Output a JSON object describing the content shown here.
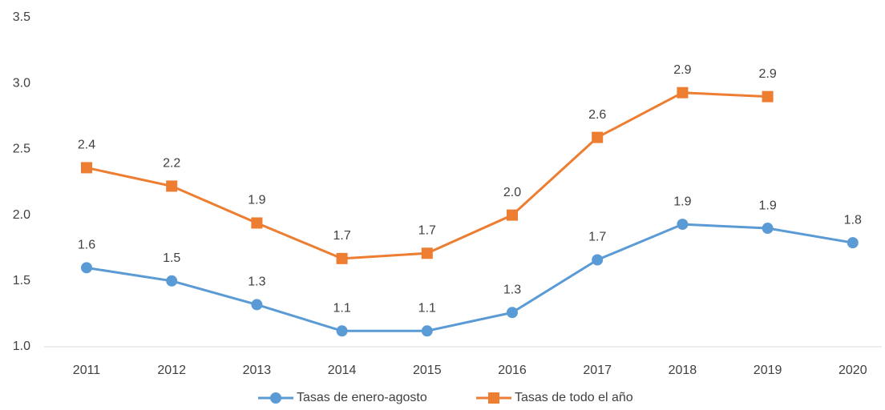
{
  "chart_data": {
    "type": "line",
    "categories": [
      "2011",
      "2012",
      "2013",
      "2014",
      "2015",
      "2016",
      "2017",
      "2018",
      "2019",
      "2020"
    ],
    "series": [
      {
        "name": "Tasas de enero-agosto",
        "color": "#5b9bd5",
        "marker": "circle",
        "values": [
          1.6,
          1.5,
          1.32,
          1.12,
          1.12,
          1.26,
          1.66,
          1.93,
          1.9,
          1.79
        ],
        "value_labels": [
          "1.6",
          "1.5",
          "1.3",
          "1.1",
          "1.1",
          "1.3",
          "1.7",
          "1.9",
          "1.9",
          "1.8"
        ]
      },
      {
        "name": "Tasas de todo el año",
        "color": "#ed7d31",
        "marker": "square",
        "values": [
          2.36,
          2.22,
          1.94,
          1.67,
          1.71,
          2.0,
          2.59,
          2.93,
          2.9,
          null
        ],
        "value_labels": [
          "2.4",
          "2.2",
          "1.9",
          "1.7",
          "1.7",
          "2.0",
          "2.6",
          "2.9",
          "2.9",
          null
        ]
      }
    ],
    "ylim": [
      1.0,
      3.5
    ],
    "yticks": [
      {
        "value": 1.0,
        "label": "1.0"
      },
      1.5,
      {
        "value": 2.0,
        "label": "2.0"
      },
      2.5,
      {
        "value": 3.0,
        "label": "3.0"
      },
      3.5
    ],
    "grid": false,
    "legend": "bottom"
  }
}
